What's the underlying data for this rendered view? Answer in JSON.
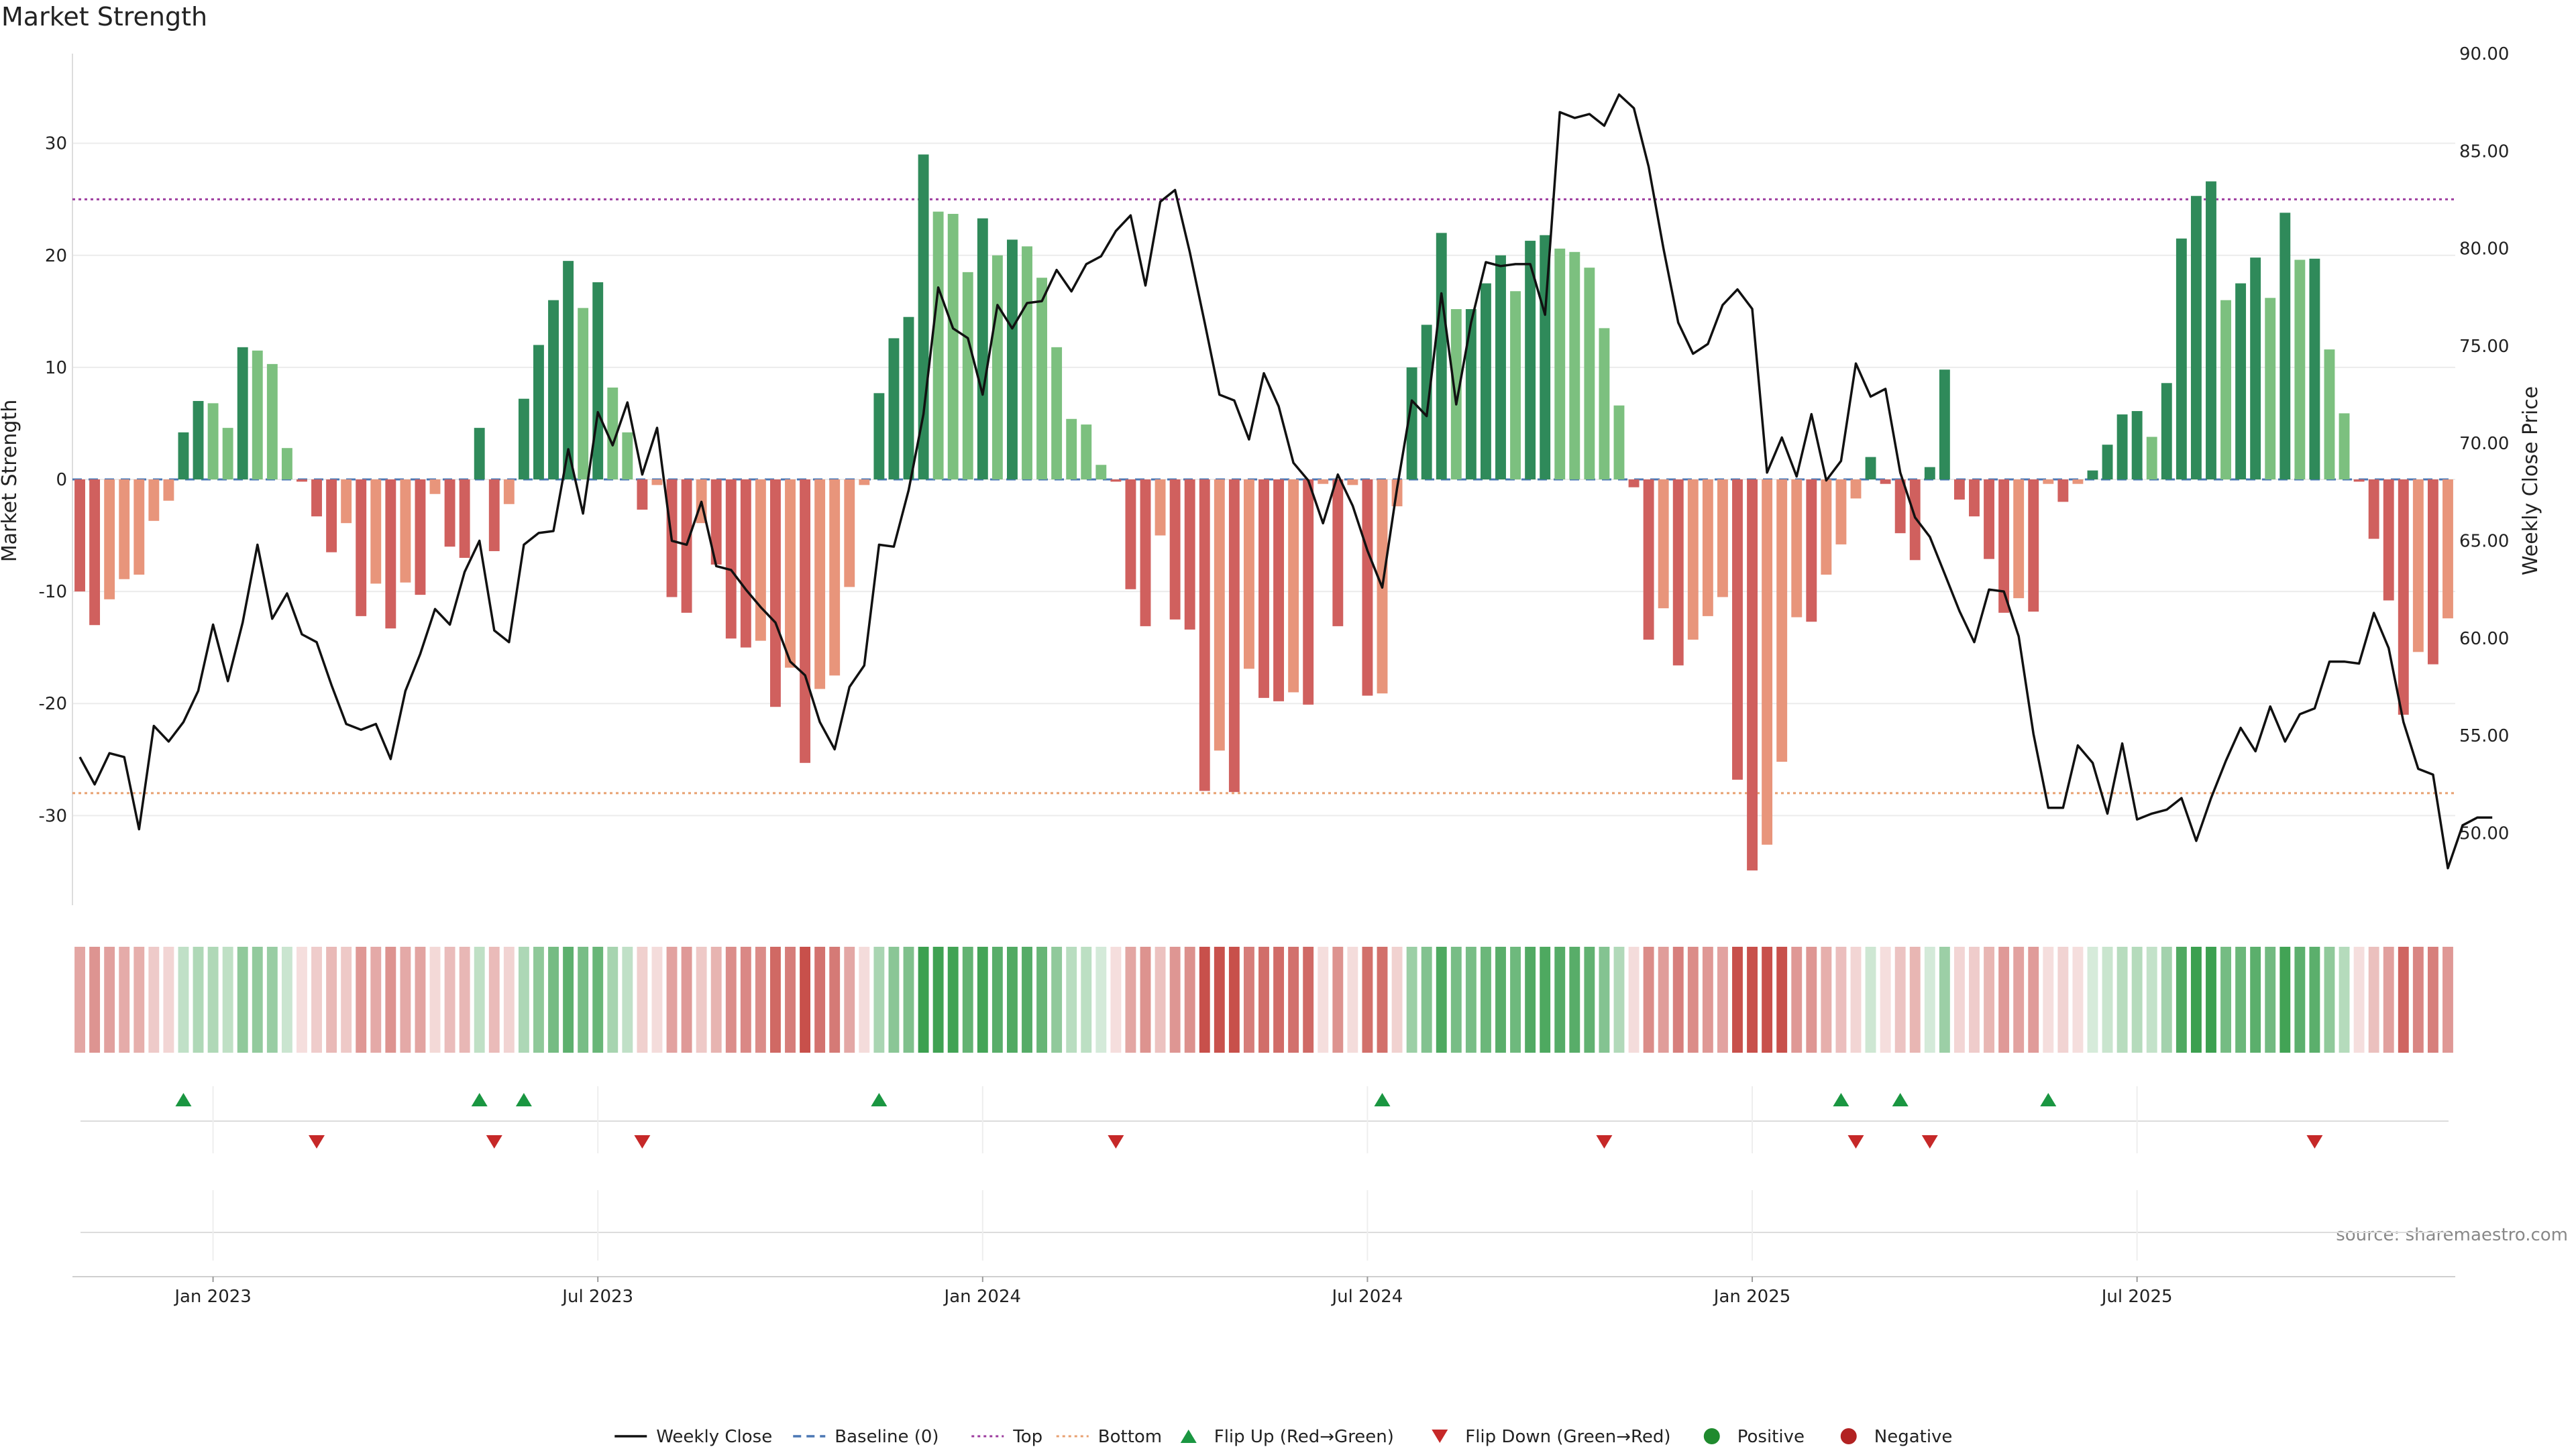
{
  "chart_data": {
    "type": "bar",
    "title": "Market Strength",
    "source_text": "source: sharemaestro.com",
    "y_left": {
      "label": "Market Strength",
      "range": [
        -38,
        38
      ],
      "ticks": [
        -30,
        -20,
        -10,
        0,
        10,
        20,
        30
      ]
    },
    "y_right": {
      "label": "Weekly Close Price",
      "range": [
        46.3,
        90.0
      ],
      "ticks": [
        "50.00",
        "55.00",
        "60.00",
        "65.00",
        "70.00",
        "75.00",
        "80.00",
        "85.00",
        "90.00"
      ]
    },
    "x_ticks": [
      {
        "label": "Jan 2023",
        "index": 9
      },
      {
        "label": "Jul 2023",
        "index": 35
      },
      {
        "label": "Jan 2024",
        "index": 61
      },
      {
        "label": "Jul 2024",
        "index": 87
      },
      {
        "label": "Jan 2025",
        "index": 113
      },
      {
        "label": "Jul 2025",
        "index": 139
      }
    ],
    "thresholds": {
      "top": 25,
      "bottom": -28,
      "baseline": 0
    },
    "strength": [
      -10,
      -13,
      -10.7,
      -8.9,
      -8.5,
      -3.7,
      -1.9,
      4.2,
      7,
      6.8,
      4.6,
      11.8,
      11.5,
      10.3,
      2.8,
      -0.2,
      -3.3,
      -6.5,
      -3.9,
      -12.2,
      -9.3,
      -13.3,
      -9.2,
      -10.3,
      -1.3,
      -6,
      -7,
      4.6,
      -6.4,
      -2.2,
      7.2,
      12,
      16,
      19.5,
      15.3,
      17.6,
      8.2,
      4.2,
      -2.7,
      -0.5,
      -10.5,
      -11.9,
      -3.9,
      -7.6,
      -14.2,
      -15,
      -14.4,
      -20.3,
      -16.8,
      -25.3,
      -18.7,
      -17.5,
      -9.6,
      -0.5,
      7.7,
      12.6,
      14.5,
      29,
      23.9,
      23.7,
      18.5,
      23.3,
      20,
      21.4,
      20.8,
      18,
      11.8,
      5.4,
      4.9,
      1.3,
      -0.2,
      -9.8,
      -13.1,
      -5,
      -12.5,
      -13.4,
      -27.8,
      -24.2,
      -27.9,
      -16.9,
      -19.5,
      -19.8,
      -19,
      -20.1,
      -0.4,
      -13.1,
      -0.5,
      -19.3,
      -19.1,
      -2.4,
      10,
      13.8,
      22,
      15.2,
      15.2,
      17.5,
      20,
      16.8,
      21.3,
      21.8,
      20.6,
      20.3,
      18.9,
      13.5,
      6.6,
      -0.7,
      -14.3,
      -11.5,
      -16.6,
      -14.3,
      -12.2,
      -10.5,
      -26.8,
      -34.9,
      -32.6,
      -25.2,
      -12.3,
      -12.7,
      -8.5,
      -5.8,
      -1.7,
      2,
      -0.4,
      -4.8,
      -7.2,
      1.1,
      9.8,
      -1.8,
      -3.3,
      -7.1,
      -11.9,
      -10.6,
      -11.8,
      -0.4,
      -2,
      -0.4,
      0.8,
      3.1,
      5.8,
      6.1,
      3.8,
      8.6,
      21.5,
      25.3,
      26.6,
      16,
      17.5,
      19.8,
      16.2,
      23.8,
      19.6,
      19.7,
      11.6,
      5.9,
      -0.2,
      -5.3,
      -10.8,
      -21,
      -15.4,
      -16.5,
      -12.4
    ],
    "weekly_close": [
      53.9,
      52.5,
      54.1,
      53.9,
      50.2,
      55.5,
      54.7,
      55.7,
      57.3,
      60.7,
      57.8,
      60.8,
      64.8,
      61,
      62.3,
      60.2,
      59.8,
      57.6,
      55.6,
      55.3,
      55.6,
      53.8,
      57.3,
      59.2,
      61.5,
      60.7,
      63.4,
      65,
      60.4,
      59.8,
      64.8,
      65.4,
      65.5,
      69.7,
      66.4,
      71.6,
      69.9,
      72.1,
      68.4,
      70.8,
      65,
      64.8,
      67,
      63.7,
      63.5,
      62.5,
      61.6,
      60.8,
      58.8,
      58.1,
      55.7,
      54.3,
      57.5,
      58.6,
      64.8,
      64.7,
      67.6,
      71.5,
      78,
      75.9,
      75.4,
      72.5,
      77.1,
      75.9,
      77.2,
      77.3,
      78.9,
      77.8,
      79.2,
      79.6,
      80.9,
      81.7,
      78.1,
      82.4,
      83,
      79.8,
      76.2,
      72.5,
      72.2,
      70.2,
      73.6,
      71.9,
      69,
      68.1,
      65.9,
      68.4,
      66.8,
      64.5,
      62.6,
      67.7,
      72.2,
      71.4,
      77.7,
      72,
      76.2,
      79.3,
      79.1,
      79.2,
      79.2,
      76.6,
      87,
      86.7,
      86.9,
      86.3,
      87.9,
      87.2,
      84.2,
      80,
      76.2,
      74.6,
      75.1,
      77.1,
      77.9,
      76.9,
      68.5,
      70.3,
      68.3,
      71.5,
      68.1,
      69.1,
      74.1,
      72.4,
      72.8,
      68.5,
      66.2,
      65.2,
      63.3,
      61.4,
      59.8,
      62.5,
      62.4,
      60.1,
      55.1,
      51.3,
      51.3,
      54.5,
      53.6,
      51,
      54.6,
      50.7,
      51,
      51.2,
      51.8,
      49.6,
      51.8,
      53.7,
      55.4,
      54.2,
      56.5,
      54.7,
      56.1,
      56.4,
      58.8,
      58.8,
      58.7,
      61.3,
      59.5,
      55.7,
      53.3,
      53,
      48.2,
      50.4,
      50.8,
      50.8
    ],
    "flip_up": [
      7,
      27,
      30,
      54,
      88,
      119,
      123,
      133
    ],
    "flip_down": [
      16,
      28,
      38,
      70,
      103,
      120,
      125,
      151
    ],
    "legend": [
      {
        "label": "Weekly Close",
        "symbol": "line",
        "color": "#111111"
      },
      {
        "label": "Baseline (0)",
        "symbol": "dash",
        "color": "#4a77b4"
      },
      {
        "label": "Top",
        "symbol": "dot",
        "color": "#9c3a9e"
      },
      {
        "label": "Bottom",
        "symbol": "dot",
        "color": "#e8a070"
      },
      {
        "label": "Flip Up (Red→Green)",
        "symbol": "up",
        "color": "#1a9641"
      },
      {
        "label": "Flip Down (Green→Red)",
        "symbol": "down",
        "color": "#c62828"
      },
      {
        "label": "Positive",
        "symbol": "circle",
        "color": "#1f8a2e"
      },
      {
        "label": "Negative",
        "symbol": "circle",
        "color": "#b22222"
      }
    ],
    "colors": {
      "pos_strong": "#2f8a5a",
      "pos_light": "#7cc07f",
      "neg_strong": "#d0605e",
      "neg_light": "#e8957b",
      "up": "#1a9641",
      "down": "#c62828",
      "close": "#111111",
      "top": "#9c3a9e",
      "bottom": "#e8a070",
      "baseline": "#4a77b4"
    },
    "grid": true,
    "legend_position": "bottom"
  }
}
